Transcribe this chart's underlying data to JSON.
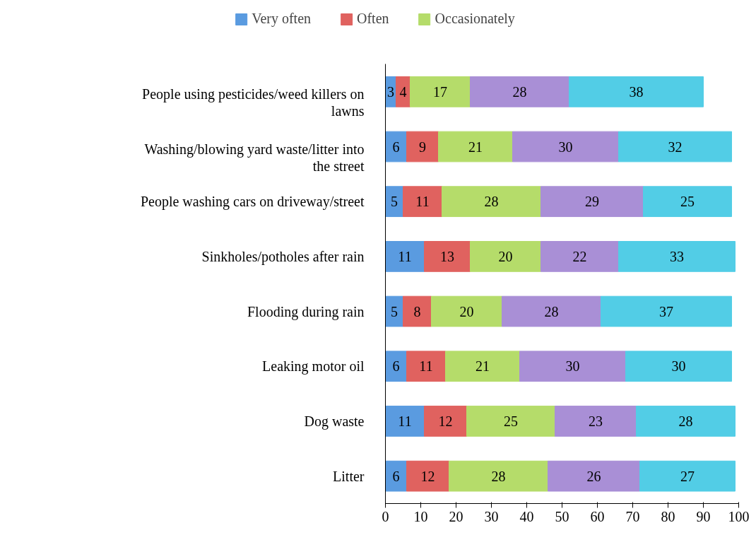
{
  "chart_data": {
    "type": "bar",
    "orientation": "horizontal",
    "stacked": true,
    "data_labels": true,
    "legend": "top",
    "grid": false,
    "categories": [
      "People using pesticides/weed killers on lawns",
      "Washing/blowing yard waste/litter into the street",
      "People washing cars on driveway/street",
      "Sinkholes/potholes after rain",
      "Flooding during rain",
      "Leaking motor oil",
      "Dog waste",
      "Litter"
    ],
    "series": [
      {
        "name": "Very often",
        "color": "#5a9be0",
        "values": [
          3,
          6,
          5,
          11,
          5,
          6,
          11,
          6
        ]
      },
      {
        "name": "Often",
        "color": "#e0625f",
        "values": [
          4,
          9,
          11,
          13,
          8,
          11,
          12,
          12
        ]
      },
      {
        "name": "Occasionately",
        "color": "#b5dc6a",
        "values": [
          17,
          21,
          28,
          20,
          20,
          21,
          25,
          28
        ]
      },
      {
        "color": "#a98fd6",
        "values": [
          28,
          30,
          29,
          22,
          28,
          30,
          23,
          26
        ]
      },
      {
        "color": "#52cde6",
        "values": [
          38,
          32,
          25,
          33,
          37,
          30,
          28,
          27
        ]
      }
    ],
    "xlim": [
      0,
      100
    ],
    "xticks": [
      0,
      10,
      20,
      30,
      40,
      50,
      60,
      70,
      80,
      90,
      100
    ]
  }
}
